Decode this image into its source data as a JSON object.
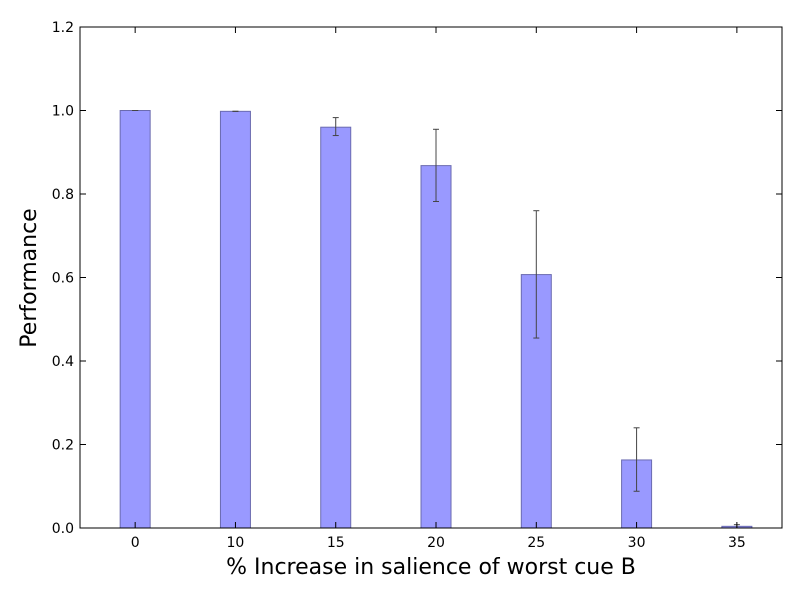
{
  "chart_data": {
    "type": "bar",
    "title": "",
    "xlabel": "% Increase in salience of worst cue B",
    "ylabel": "Performance",
    "categories": [
      "0",
      "10",
      "15",
      "20",
      "25",
      "30",
      "35"
    ],
    "values": [
      1.0,
      0.998,
      0.96,
      0.868,
      0.607,
      0.163,
      0.004
    ],
    "error_low": [
      1.0,
      0.998,
      0.94,
      0.782,
      0.455,
      0.088,
      0.0
    ],
    "error_high": [
      1.0,
      0.998,
      0.983,
      0.955,
      0.76,
      0.24,
      0.008
    ],
    "ylim": [
      0.0,
      1.2
    ],
    "yticks": [
      0.0,
      0.2,
      0.4,
      0.6,
      0.8,
      1.0,
      1.2
    ],
    "ytick_labels": [
      "0.0",
      "0.2",
      "0.4",
      "0.6",
      "0.8",
      "1.0",
      "1.2"
    ],
    "grid": false,
    "colors": {
      "bar_fill": "#9999ff",
      "bar_edge": "#6b6bb0",
      "error_bar": "#444444",
      "axis": "#000000"
    }
  }
}
